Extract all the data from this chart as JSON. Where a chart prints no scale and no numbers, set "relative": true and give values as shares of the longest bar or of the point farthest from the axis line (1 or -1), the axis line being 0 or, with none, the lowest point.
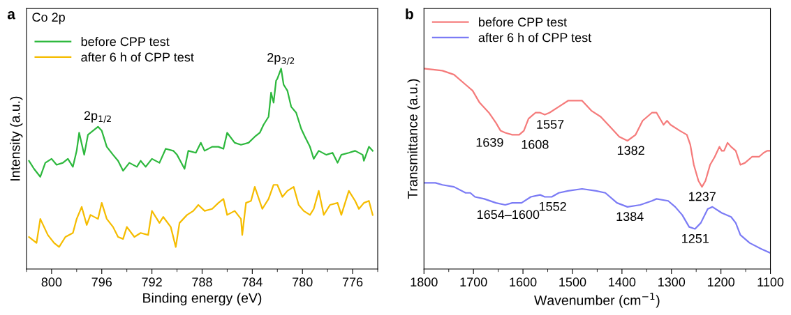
{
  "chart_data": [
    {
      "type": "line",
      "relative": true,
      "xlabel": "Binding energy (eV)",
      "ylabel": "Intensity (a.u.)",
      "xlim": [
        802,
        774
      ],
      "xticks": [
        800,
        796,
        792,
        788,
        784,
        780,
        776
      ],
      "legend": "top left",
      "annotations": [
        "a",
        "Co 2p",
        {
          "text": "2p$_{1/2}$",
          "x": 796.3,
          "y": 0.71
        },
        {
          "text": "2p$_{3/2}$",
          "x": 781.7,
          "y": 1
        }
      ],
      "series": [
        {
          "name": "before CPP test",
          "color": "#2db83d",
          "x": [
            801.8,
            801.4,
            800.9,
            800.5,
            800.0,
            799.6,
            799.1,
            798.7,
            798.3,
            798.0,
            797.8,
            797.4,
            797.1,
            796.7,
            796.3,
            796.0,
            795.6,
            795.1,
            794.7,
            794.3,
            793.8,
            793.2,
            792.9,
            792.5,
            792.0,
            791.4,
            790.9,
            790.3,
            790.0,
            789.4,
            789.1,
            788.5,
            788.1,
            787.8,
            787.2,
            786.7,
            786.3,
            786.0,
            785.4,
            784.9,
            784.3,
            783.8,
            783.4,
            783.1,
            782.7,
            782.5,
            782.3,
            782.1,
            782.0,
            781.7,
            781.5,
            781.2,
            780.9,
            780.5,
            780.1,
            779.8,
            779.4,
            779.1,
            778.7,
            778.1,
            777.6,
            777.2,
            776.9,
            776.3,
            775.8,
            775.2,
            775.1,
            774.7,
            774.4
          ],
          "values": [
            0.54,
            0.5,
            0.46,
            0.53,
            0.55,
            0.52,
            0.53,
            0.55,
            0.51,
            0.59,
            0.68,
            0.57,
            0.67,
            0.69,
            0.71,
            0.69,
            0.61,
            0.57,
            0.54,
            0.49,
            0.53,
            0.51,
            0.54,
            0.51,
            0.55,
            0.53,
            0.6,
            0.59,
            0.57,
            0.5,
            0.59,
            0.58,
            0.63,
            0.59,
            0.61,
            0.61,
            0.6,
            0.68,
            0.63,
            0.62,
            0.63,
            0.66,
            0.68,
            0.72,
            0.76,
            0.88,
            0.83,
            0.94,
            0.95,
            1,
            0.92,
            0.89,
            0.81,
            0.78,
            0.7,
            0.66,
            0.61,
            0.55,
            0.59,
            0.57,
            0.58,
            0.53,
            0.57,
            0.58,
            0.59,
            0.57,
            0.54,
            0.61,
            0.59
          ]
        },
        {
          "name": "after 6 h of CPP test",
          "color": "#f5bc00",
          "x": [
            801.8,
            801.2,
            800.9,
            800.3,
            799.8,
            799.4,
            798.9,
            798.3,
            798.0,
            797.6,
            797.2,
            796.9,
            796.3,
            796.0,
            795.6,
            795.1,
            794.7,
            794.3,
            794.0,
            793.4,
            792.9,
            792.3,
            792.0,
            791.4,
            791.1,
            790.5,
            790.1,
            789.8,
            789.2,
            788.7,
            788.3,
            787.8,
            787.2,
            786.7,
            786.3,
            786.0,
            785.4,
            784.9,
            784.8,
            784.5,
            784.1,
            783.8,
            783.2,
            782.7,
            782.3,
            782.0,
            781.6,
            781.2,
            780.7,
            780.3,
            779.9,
            779.4,
            779.1,
            778.7,
            778.3,
            777.8,
            777.2,
            776.9,
            776.3,
            775.8,
            775.5,
            775.1,
            774.7,
            774.4
          ],
          "values": [
            0.16,
            0.13,
            0.25,
            0.17,
            0.13,
            0.11,
            0.16,
            0.18,
            0.25,
            0.31,
            0.22,
            0.27,
            0.25,
            0.33,
            0.25,
            0.21,
            0.16,
            0.15,
            0.21,
            0.16,
            0.18,
            0.17,
            0.29,
            0.23,
            0.26,
            0.21,
            0.11,
            0.23,
            0.27,
            0.29,
            0.32,
            0.29,
            0.3,
            0.33,
            0.35,
            0.27,
            0.29,
            0.25,
            0.17,
            0.33,
            0.34,
            0.41,
            0.3,
            0.35,
            0.42,
            0.42,
            0.36,
            0.39,
            0.41,
            0.32,
            0.29,
            0.27,
            0.3,
            0.39,
            0.27,
            0.32,
            0.33,
            0.27,
            0.39,
            0.34,
            0.3,
            0.33,
            0.34,
            0.27
          ]
        }
      ]
    },
    {
      "type": "line",
      "relative": true,
      "xlabel": "Wavenumber (cm$^{−1}$)",
      "ylabel": "Transmittance (a.u.)",
      "xlim": [
        1800,
        1100
      ],
      "xticks": [
        1800,
        1700,
        1600,
        1500,
        1400,
        1300,
        1200,
        1100
      ],
      "legend": "top left",
      "annotations": [
        "b",
        {
          "text": "1639",
          "x": 1639,
          "y": 0.68
        },
        {
          "text": "1608",
          "x": 1604,
          "y": 0.67
        },
        {
          "text": "1557",
          "x": 1545,
          "y": 0.77
        },
        {
          "text": "1382",
          "x": 1382,
          "y": 0.64
        },
        {
          "text": "1237",
          "x": 1238,
          "y": 0.41
        },
        {
          "text": "1654–1600",
          "x": 1630,
          "y": 0.32
        },
        {
          "text": "1552",
          "x": 1540,
          "y": 0.36
        },
        {
          "text": "1384",
          "x": 1384,
          "y": 0.31
        },
        {
          "text": "1251",
          "x": 1252,
          "y": 0.2
        }
      ],
      "series": [
        {
          "name": "before CPP test",
          "color": "#f57b7b",
          "x": [
            1800,
            1762.8,
            1739.3,
            1715.8,
            1701.7,
            1687.6,
            1668.8,
            1654.7,
            1645.2,
            1635.8,
            1621.7,
            1607.6,
            1598.2,
            1588.8,
            1574.7,
            1565.3,
            1555.9,
            1546.4,
            1527.6,
            1508.8,
            1480.6,
            1461.8,
            1443.0,
            1424.2,
            1405.3,
            1388.9,
            1372.4,
            1358.3,
            1339.5,
            1330.1,
            1316.0,
            1308.9,
            1301.9,
            1283.0,
            1268.9,
            1261.9,
            1254.8,
            1245.4,
            1238.3,
            1231.3,
            1221.9,
            1212.5,
            1203.1,
            1198.4,
            1193.7,
            1186.6,
            1179.5,
            1170.1,
            1160.7,
            1151.3,
            1137.2,
            1123.1,
            1113.7,
            1106.6,
            1100
          ],
          "values": [
            1,
            0.99,
            0.97,
            0.92,
            0.89,
            0.83,
            0.78,
            0.73,
            0.69,
            0.68,
            0.67,
            0.67,
            0.69,
            0.75,
            0.78,
            0.78,
            0.77,
            0.78,
            0.81,
            0.84,
            0.84,
            0.79,
            0.76,
            0.71,
            0.66,
            0.64,
            0.67,
            0.74,
            0.78,
            0.78,
            0.72,
            0.74,
            0.72,
            0.69,
            0.67,
            0.62,
            0.52,
            0.44,
            0.41,
            0.44,
            0.52,
            0.56,
            0.61,
            0.59,
            0.59,
            0.63,
            0.61,
            0.59,
            0.52,
            0.53,
            0.56,
            0.56,
            0.58,
            0.59,
            0.59
          ]
        },
        {
          "name": "after 6 h of CPP test",
          "color": "#7b7bf5",
          "x": [
            1800,
            1776.9,
            1762.8,
            1739.3,
            1715.8,
            1706.4,
            1697.0,
            1678.2,
            1654.7,
            1635.8,
            1621.7,
            1602.9,
            1584.1,
            1565.3,
            1555.9,
            1541.8,
            1527.6,
            1508.8,
            1480.6,
            1452.4,
            1433.6,
            1410.0,
            1388.9,
            1363.0,
            1339.5,
            1330.1,
            1306.6,
            1292.4,
            1278.3,
            1264.2,
            1252.4,
            1240.7,
            1226.6,
            1217.2,
            1198.4,
            1179.5,
            1170.1,
            1160.7,
            1141.9,
            1118.4,
            1100
          ],
          "values": [
            0.43,
            0.43,
            0.42,
            0.41,
            0.38,
            0.38,
            0.36,
            0.35,
            0.33,
            0.32,
            0.33,
            0.33,
            0.36,
            0.37,
            0.36,
            0.36,
            0.38,
            0.39,
            0.4,
            0.39,
            0.38,
            0.33,
            0.31,
            0.32,
            0.34,
            0.35,
            0.34,
            0.31,
            0.27,
            0.21,
            0.2,
            0.23,
            0.3,
            0.31,
            0.28,
            0.26,
            0.23,
            0.17,
            0.13,
            0.1,
            0.08
          ]
        }
      ]
    }
  ]
}
